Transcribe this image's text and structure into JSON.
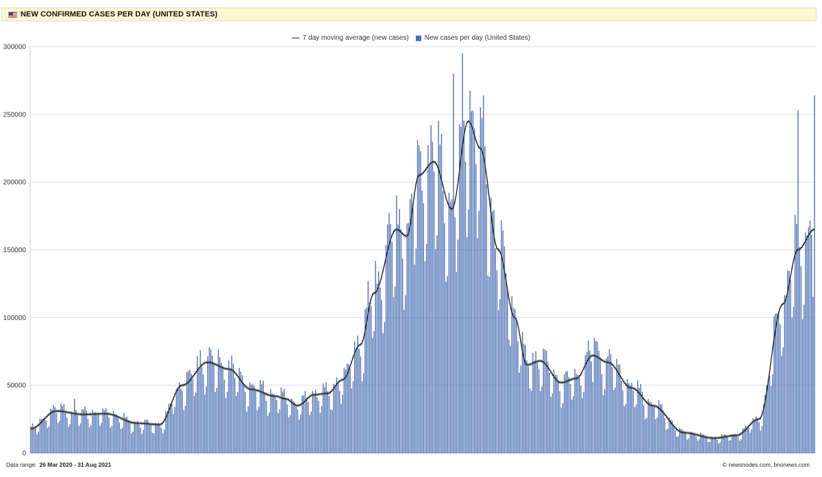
{
  "header": {
    "title": "NEW CONFIRMED CASES PER DAY (UNITED STATES)",
    "flag_icon": "us-flag-icon"
  },
  "footer": {
    "range_label": "Data range:",
    "range_value": "26 Mar 2020  -  31 Aug 2021",
    "credit": "©  newsnodes.com, bnonews.com"
  },
  "chart_data": {
    "type": "bar",
    "title": "NEW CONFIRMED CASES PER DAY (UNITED STATES)",
    "x_start": "2020-03-26",
    "x_end": "2021-08-31",
    "ylim": [
      0,
      300000
    ],
    "yticks": [
      "0",
      "50000",
      "100000",
      "150000",
      "200000",
      "250000",
      "300000"
    ],
    "grid": true,
    "legend_position": "top-center",
    "colors": {
      "bars": "#4b6fb3",
      "line": "#222222"
    },
    "series": [
      {
        "name": "7 day moving average (new cases)",
        "kind": "line"
      },
      {
        "name": "New cases per day (United States)",
        "kind": "bar"
      }
    ],
    "avg_anchors": [
      [
        "2020-03-26",
        18000
      ],
      [
        "2020-04-12",
        31000
      ],
      [
        "2020-04-30",
        28500
      ],
      [
        "2020-05-15",
        29000
      ],
      [
        "2020-06-05",
        22000
      ],
      [
        "2020-06-20",
        21000
      ],
      [
        "2020-07-05",
        50000
      ],
      [
        "2020-07-22",
        67000
      ],
      [
        "2020-08-05",
        62000
      ],
      [
        "2020-08-20",
        47000
      ],
      [
        "2020-09-05",
        42000
      ],
      [
        "2020-09-12",
        40000
      ],
      [
        "2020-09-20",
        35000
      ],
      [
        "2020-10-01",
        43000
      ],
      [
        "2020-10-10",
        44000
      ],
      [
        "2020-10-20",
        54000
      ],
      [
        "2020-11-01",
        80000
      ],
      [
        "2020-11-10",
        118000
      ],
      [
        "2020-11-25",
        165000
      ],
      [
        "2020-12-02",
        160000
      ],
      [
        "2020-12-10",
        205000
      ],
      [
        "2020-12-20",
        215000
      ],
      [
        "2021-01-01",
        180000
      ],
      [
        "2021-01-12",
        245000
      ],
      [
        "2021-01-20",
        225000
      ],
      [
        "2021-02-01",
        150000
      ],
      [
        "2021-02-12",
        100000
      ],
      [
        "2021-02-20",
        65000
      ],
      [
        "2021-03-01",
        68000
      ],
      [
        "2021-03-15",
        52000
      ],
      [
        "2021-03-25",
        55000
      ],
      [
        "2021-04-05",
        72000
      ],
      [
        "2021-04-15",
        67000
      ],
      [
        "2021-05-01",
        48000
      ],
      [
        "2021-05-15",
        35000
      ],
      [
        "2021-06-05",
        15000
      ],
      [
        "2021-06-25",
        11000
      ],
      [
        "2021-07-10",
        13000
      ],
      [
        "2021-07-25",
        25000
      ],
      [
        "2021-08-10",
        110000
      ],
      [
        "2021-08-20",
        150000
      ],
      [
        "2021-08-31",
        165000
      ]
    ],
    "notable_peaks": [
      [
        "2020-04-24",
        40000
      ],
      [
        "2020-07-17",
        76000
      ],
      [
        "2020-11-06",
        127000
      ],
      [
        "2020-12-18",
        242000
      ],
      [
        "2021-01-02",
        280000
      ],
      [
        "2021-01-08",
        295000
      ],
      [
        "2021-04-06",
        85000
      ],
      [
        "2021-08-20",
        253000
      ],
      [
        "2021-08-31",
        264000
      ]
    ]
  }
}
